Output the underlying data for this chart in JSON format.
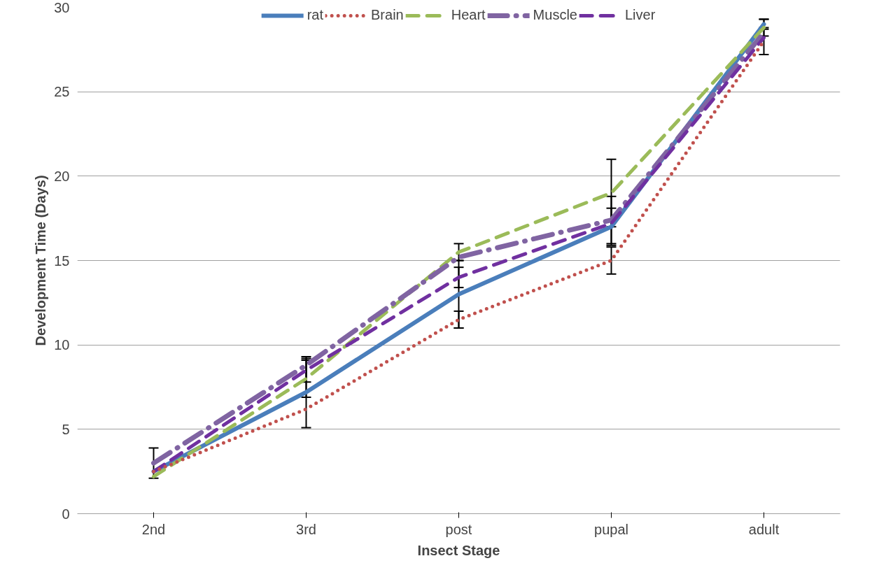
{
  "chart_data": {
    "type": "line",
    "xlabel": "Insect Stage",
    "ylabel": "Development Time (Days)",
    "categories": [
      "2nd",
      "3rd",
      "post",
      "pupal",
      "adult"
    ],
    "series": [
      {
        "name": "rat",
        "color": "#4a7ebb",
        "line_style": "solid",
        "values": [
          2.5,
          7.2,
          13,
          17,
          29
        ],
        "errors": [
          null,
          2.1,
          2,
          1.1,
          0.3
        ]
      },
      {
        "name": "Brain",
        "color": "#c0504d",
        "line_style": "dotted",
        "values": [
          2.5,
          6.2,
          11.5,
          15,
          28
        ],
        "errors": [
          null,
          null,
          0.5,
          0.8,
          0.8
        ]
      },
      {
        "name": "Heart",
        "color": "#9bbb59",
        "line_style": "dashed",
        "values": [
          2.2,
          8,
          15.5,
          19,
          28.8
        ],
        "errors": [
          null,
          1.1,
          0.5,
          2,
          0.5
        ]
      },
      {
        "name": "Muscle",
        "color": "#8064a2",
        "line_style": "dashdot",
        "values": [
          3,
          8.8,
          15.2,
          17.4,
          28.5
        ],
        "errors": [
          0.9,
          null,
          null,
          1.4,
          null
        ]
      },
      {
        "name": "Liver",
        "color": "#7030a0",
        "line_style": "dashed",
        "values": [
          2.5,
          8.5,
          14,
          17.2,
          28.2
        ],
        "errors": [
          null,
          0.7,
          0.6,
          null,
          null
        ]
      }
    ],
    "ylim": [
      0,
      30
    ],
    "yticks": [
      0,
      5,
      10,
      15,
      20,
      25,
      30
    ],
    "grid": "y",
    "legend": "top"
  }
}
